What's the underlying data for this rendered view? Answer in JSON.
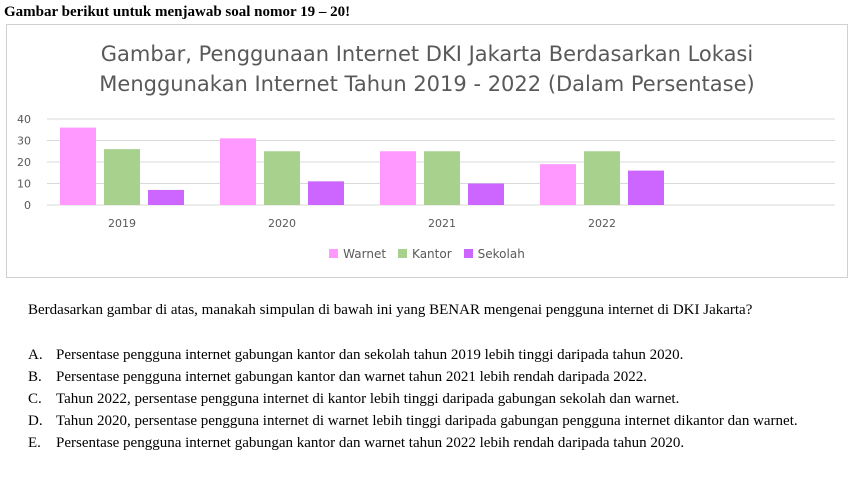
{
  "heading": "Gambar berikut untuk menjawab soal nomor 19 – 20!",
  "chart_data": {
    "type": "bar",
    "title_line1": "Gambar, Penggunaan Internet DKI Jakarta Berdasarkan Lokasi",
    "title_line2": "Menggunakan Internet Tahun 2019 - 2022 (Dalam Persentase)",
    "categories": [
      "2019",
      "2020",
      "2021",
      "2022"
    ],
    "series": [
      {
        "name": "Warnet",
        "color": "#ff99ff",
        "values": [
          36,
          31,
          25,
          19
        ]
      },
      {
        "name": "Kantor",
        "color": "#a9d18e",
        "values": [
          26,
          25,
          25,
          25
        ]
      },
      {
        "name": "Sekolah",
        "color": "#cc66ff",
        "values": [
          7,
          11,
          10,
          16
        ]
      }
    ],
    "yticks": [
      "0",
      "10",
      "20",
      "30",
      "40"
    ],
    "ylim": [
      0,
      40
    ],
    "grid": true,
    "legend": "bottom"
  },
  "question": "Berdasarkan gambar di atas, manakah simpulan di bawah ini yang BENAR mengenai pengguna internet di DKI Jakarta?",
  "options": [
    {
      "letter": "A.",
      "text": "Persentase pengguna internet gabungan kantor dan sekolah tahun 2019 lebih tinggi daripada tahun 2020."
    },
    {
      "letter": "B.",
      "text": "Persentase pengguna internet gabungan kantor dan warnet tahun 2021 lebih rendah daripada 2022."
    },
    {
      "letter": "C.",
      "text": "Tahun 2022, persentase pengguna internet di kantor lebih tinggi daripada gabungan sekolah dan warnet."
    },
    {
      "letter": "D.",
      "text": "Tahun 2020, persentase pengguna internet di warnet lebih tinggi daripada gabungan pengguna internet dikantor dan warnet."
    },
    {
      "letter": "E.",
      "text": "Persentase pengguna internet gabungan kantor dan warnet tahun 2022 lebih rendah daripada tahun 2020."
    }
  ]
}
